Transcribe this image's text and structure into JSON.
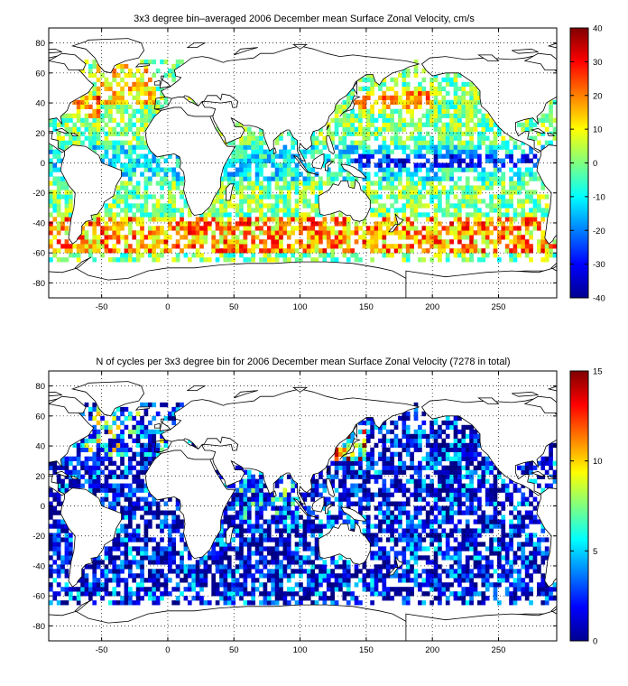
{
  "chart_data": [
    {
      "type": "heatmap",
      "title": "3x3 degree bin–averaged 2006 December mean Surface Zonal Velocity, cm/s",
      "xlabel": "",
      "ylabel": "",
      "xlim": [
        -90,
        294
      ],
      "ylim": [
        -90,
        90
      ],
      "xticks": [
        "-50",
        "0",
        "50",
        "100",
        "150",
        "200",
        "250"
      ],
      "yticks": [
        "80",
        "60",
        "40",
        "20",
        "0",
        "-20",
        "-40",
        "-60",
        "-80"
      ],
      "grid": true,
      "colormap": "jet",
      "colorbar": {
        "min": -40,
        "max": 40,
        "ticks": [
          "40",
          "30",
          "20",
          "10",
          "0",
          "-10",
          "-20",
          "-30",
          "-40"
        ]
      },
      "bin_size_deg": 3,
      "field": "velocity"
    },
    {
      "type": "heatmap",
      "title": "N of cycles per 3x3 degree bin for 2006 December mean Surface Zonal Velocity (7278 in total)",
      "xlabel": "",
      "ylabel": "",
      "xlim": [
        -90,
        294
      ],
      "ylim": [
        -90,
        90
      ],
      "xticks": [
        "-50",
        "0",
        "50",
        "100",
        "150",
        "200",
        "250"
      ],
      "yticks": [
        "80",
        "60",
        "40",
        "20",
        "0",
        "-20",
        "-40",
        "-60",
        "-80"
      ],
      "grid": true,
      "colormap": "jet",
      "colorbar": {
        "min": 0,
        "max": 15,
        "ticks": [
          "15",
          "10",
          "5",
          "0"
        ]
      },
      "bin_size_deg": 3,
      "field": "count"
    }
  ]
}
